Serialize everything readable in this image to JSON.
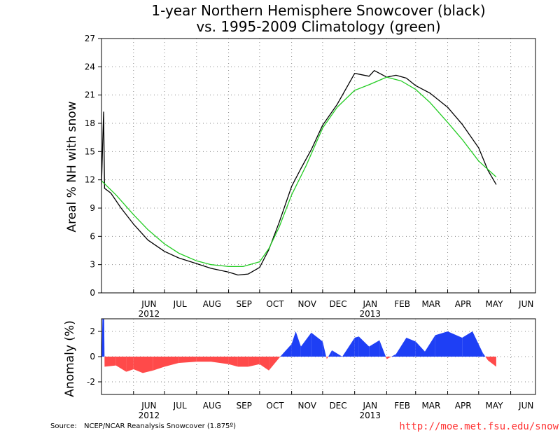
{
  "chart_data": [
    {
      "type": "line",
      "title_line1": "1-year Northern Hemisphere Snowcover (black)",
      "title_line2": "vs. 1995-2009 Climatology (green)",
      "ylabel": "Areal % NH with snow",
      "ylim": [
        0,
        27
      ],
      "yticks": [
        0,
        3,
        6,
        9,
        12,
        15,
        18,
        21,
        24,
        27
      ],
      "xlim": [
        "2012-05-01",
        "2013-06-25"
      ],
      "x_month_ticks": [
        {
          "label": "JUN",
          "date": "2012-06-01"
        },
        {
          "label": "JUL",
          "date": "2012-07-01"
        },
        {
          "label": "AUG",
          "date": "2012-08-01"
        },
        {
          "label": "SEP",
          "date": "2012-09-01"
        },
        {
          "label": "OCT",
          "date": "2012-10-01"
        },
        {
          "label": "NOV",
          "date": "2012-11-01"
        },
        {
          "label": "DEC",
          "date": "2012-12-01"
        },
        {
          "label": "JAN",
          "date": "2013-01-01"
        },
        {
          "label": "FEB",
          "date": "2013-02-01"
        },
        {
          "label": "MAR",
          "date": "2013-03-01"
        },
        {
          "label": "APR",
          "date": "2013-04-01"
        },
        {
          "label": "MAY",
          "date": "2013-05-01"
        },
        {
          "label": "JUN",
          "date": "2013-06-01"
        }
      ],
      "x_year_labels": [
        {
          "label": "2012",
          "date": "2012-06-01"
        },
        {
          "label": "2013",
          "date": "2013-01-01"
        }
      ],
      "grid": true,
      "series": [
        {
          "name": "black",
          "color": "#000000",
          "points": [
            [
              "2012-05-01",
              11.5
            ],
            [
              "2012-05-03",
              19.2
            ],
            [
              "2012-05-04",
              11.1
            ],
            [
              "2012-05-10",
              10.6
            ],
            [
              "2012-05-20",
              9.0
            ],
            [
              "2012-06-01",
              7.3
            ],
            [
              "2012-06-15",
              5.6
            ],
            [
              "2012-07-01",
              4.4
            ],
            [
              "2012-07-15",
              3.7
            ],
            [
              "2012-08-01",
              3.1
            ],
            [
              "2012-08-15",
              2.6
            ],
            [
              "2012-09-01",
              2.2
            ],
            [
              "2012-09-10",
              1.9
            ],
            [
              "2012-09-20",
              2.0
            ],
            [
              "2012-10-01",
              2.7
            ],
            [
              "2012-10-10",
              4.6
            ],
            [
              "2012-10-20",
              7.5
            ],
            [
              "2012-11-01",
              11.3
            ],
            [
              "2012-11-10",
              13.2
            ],
            [
              "2012-11-20",
              15.2
            ],
            [
              "2012-12-01",
              17.8
            ],
            [
              "2012-12-15",
              20.0
            ],
            [
              "2013-01-01",
              23.3
            ],
            [
              "2013-01-15",
              23.0
            ],
            [
              "2013-01-20",
              23.6
            ],
            [
              "2013-02-01",
              22.9
            ],
            [
              "2013-02-10",
              23.1
            ],
            [
              "2013-02-20",
              22.8
            ],
            [
              "2013-03-01",
              22.0
            ],
            [
              "2013-03-15",
              21.2
            ],
            [
              "2013-04-01",
              19.7
            ],
            [
              "2013-04-15",
              17.9
            ],
            [
              "2013-05-01",
              15.4
            ],
            [
              "2013-05-10",
              13.0
            ],
            [
              "2013-05-18",
              11.5
            ]
          ]
        },
        {
          "name": "green",
          "color": "#22cc22",
          "points": [
            [
              "2012-05-01",
              11.9
            ],
            [
              "2012-05-15",
              10.4
            ],
            [
              "2012-06-01",
              8.3
            ],
            [
              "2012-06-15",
              6.7
            ],
            [
              "2012-07-01",
              5.2
            ],
            [
              "2012-07-15",
              4.2
            ],
            [
              "2012-08-01",
              3.4
            ],
            [
              "2012-08-15",
              3.0
            ],
            [
              "2012-09-01",
              2.8
            ],
            [
              "2012-09-15",
              2.8
            ],
            [
              "2012-10-01",
              3.3
            ],
            [
              "2012-10-10",
              4.7
            ],
            [
              "2012-10-20",
              7.0
            ],
            [
              "2012-11-01",
              10.4
            ],
            [
              "2012-11-15",
              13.5
            ],
            [
              "2012-12-01",
              17.5
            ],
            [
              "2012-12-15",
              19.7
            ],
            [
              "2013-01-01",
              21.5
            ],
            [
              "2013-01-15",
              22.1
            ],
            [
              "2013-02-01",
              22.9
            ],
            [
              "2013-02-15",
              22.5
            ],
            [
              "2013-03-01",
              21.6
            ],
            [
              "2013-03-15",
              20.2
            ],
            [
              "2013-04-01",
              18.1
            ],
            [
              "2013-04-15",
              16.3
            ],
            [
              "2013-05-01",
              14.0
            ],
            [
              "2013-05-18",
              12.3
            ]
          ]
        }
      ]
    },
    {
      "type": "area",
      "ylabel": "Anomaly (%)",
      "ylim": [
        -3,
        3
      ],
      "yticks": [
        -2,
        0,
        2
      ],
      "xlim": [
        "2012-05-01",
        "2013-06-25"
      ],
      "grid": true,
      "positive_color": "#1e3ff5",
      "negative_color": "#ff4a4a",
      "series": [
        {
          "name": "",
          "points": [
            [
              "2012-05-01",
              -0.4
            ],
            [
              "2012-05-03",
              7.4
            ],
            [
              "2012-05-04",
              -0.8
            ],
            [
              "2012-05-15",
              -0.7
            ],
            [
              "2012-05-25",
              -1.2
            ],
            [
              "2012-06-01",
              -1.0
            ],
            [
              "2012-06-10",
              -1.3
            ],
            [
              "2012-06-20",
              -1.1
            ],
            [
              "2012-07-01",
              -0.8
            ],
            [
              "2012-07-15",
              -0.5
            ],
            [
              "2012-08-01",
              -0.4
            ],
            [
              "2012-08-15",
              -0.4
            ],
            [
              "2012-09-01",
              -0.6
            ],
            [
              "2012-09-10",
              -0.8
            ],
            [
              "2012-09-20",
              -0.8
            ],
            [
              "2012-10-01",
              -0.6
            ],
            [
              "2012-10-10",
              -1.1
            ],
            [
              "2012-10-18",
              -0.3
            ],
            [
              "2012-10-22",
              0.1
            ],
            [
              "2012-11-01",
              1.0
            ],
            [
              "2012-11-05",
              2.0
            ],
            [
              "2012-11-10",
              0.8
            ],
            [
              "2012-11-20",
              1.9
            ],
            [
              "2012-12-01",
              1.2
            ],
            [
              "2012-12-05",
              -0.2
            ],
            [
              "2012-12-10",
              0.5
            ],
            [
              "2012-12-20",
              0.0
            ],
            [
              "2013-01-01",
              1.5
            ],
            [
              "2013-01-05",
              1.6
            ],
            [
              "2013-01-15",
              0.8
            ],
            [
              "2013-01-25",
              1.3
            ],
            [
              "2013-02-01",
              -0.2
            ],
            [
              "2013-02-10",
              0.2
            ],
            [
              "2013-02-20",
              1.5
            ],
            [
              "2013-03-01",
              1.2
            ],
            [
              "2013-03-10",
              0.4
            ],
            [
              "2013-03-20",
              1.7
            ],
            [
              "2013-04-01",
              2.0
            ],
            [
              "2013-04-15",
              1.5
            ],
            [
              "2013-04-25",
              2.0
            ],
            [
              "2013-05-05",
              0.3
            ],
            [
              "2013-05-10",
              -0.3
            ],
            [
              "2013-05-18",
              -0.8
            ]
          ]
        }
      ]
    }
  ],
  "footer": {
    "source_label": "Source:",
    "source_text": "NCEP/NCAR Reanalysis Snowcover (1.875º)",
    "url": "http://moe.met.fsu.edu/snow"
  }
}
